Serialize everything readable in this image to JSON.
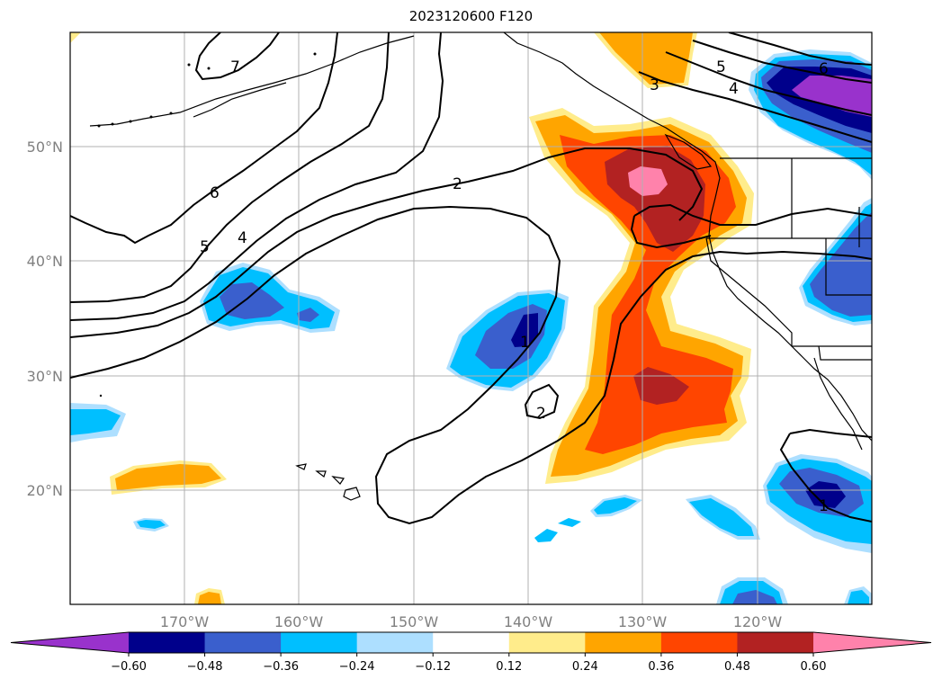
{
  "title": "2023120600 F120",
  "map": {
    "lat_labels": [
      "50°N",
      "40°N",
      "30°N",
      "20°N"
    ],
    "lon_labels": [
      "170°W",
      "160°W",
      "150°W",
      "140°W",
      "130°W",
      "120°W"
    ],
    "extent": {
      "lon_min": -180,
      "lon_max": -110,
      "lat_min": 10,
      "lat_max": 60
    },
    "gridlines": true
  },
  "contours": {
    "labels": [
      "7",
      "6",
      "5",
      "4",
      "2",
      "3",
      "5",
      "4",
      "6",
      "2",
      "1",
      "2",
      "1"
    ]
  },
  "colorbar": {
    "ticks": [
      "−0.60",
      "−0.48",
      "−0.36",
      "−0.24",
      "−0.12",
      "0.12",
      "0.24",
      "0.36",
      "0.48",
      "0.60"
    ],
    "colors": [
      "#9932CC",
      "#00008B",
      "#3A5FCD",
      "#00BFFF",
      "#ADDFFF",
      "#FFFFFF",
      "#FFEC8B",
      "#FFA500",
      "#FF4500",
      "#B22222",
      "#FF82AB"
    ],
    "extend": "both"
  }
}
